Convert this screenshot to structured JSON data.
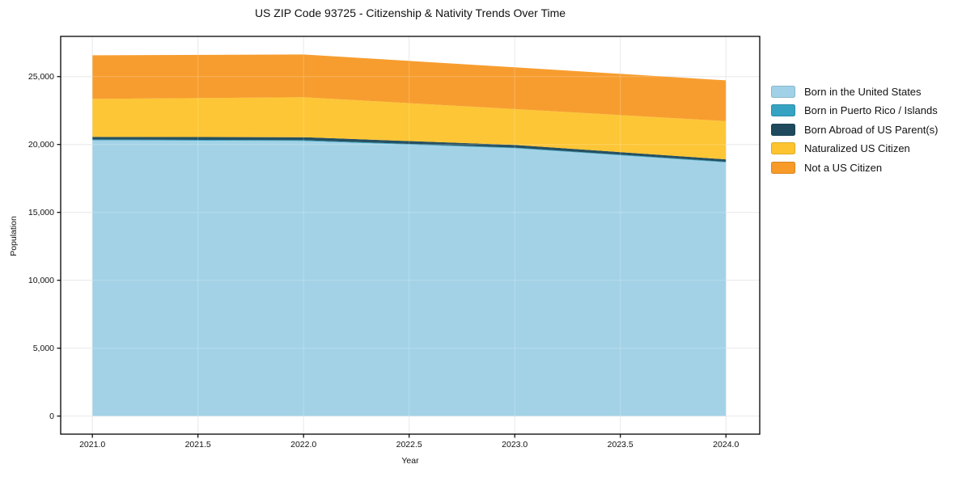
{
  "figure": {
    "background": "#ffffff"
  },
  "chart_data": {
    "type": "area",
    "stacked": true,
    "title": "US ZIP Code 93725 - Citizenship & Nativity Trends Over Time",
    "xlabel": "Year",
    "ylabel": "Population",
    "x": [
      2021,
      2022,
      2023,
      2024
    ],
    "series": [
      {
        "name": "Born in the United States",
        "color": "#a0d1e6",
        "values": [
          20310,
          20260,
          19720,
          18680
        ]
      },
      {
        "name": "Born in Puerto Rico / Islands",
        "color": "#35a3c1",
        "values": [
          55,
          60,
          50,
          45
        ]
      },
      {
        "name": "Born Abroad of US Parent(s)",
        "color": "#1f4a5d",
        "values": [
          195,
          215,
          200,
          180
        ]
      },
      {
        "name": "Naturalized US Citizen",
        "color": "#fdc42f",
        "values": [
          2800,
          2945,
          2640,
          2820
        ]
      },
      {
        "name": "Not a US Citizen",
        "color": "#f79a28",
        "values": [
          3210,
          3150,
          3070,
          3000
        ]
      }
    ],
    "totals": [
      26570,
      26630,
      25680,
      24725
    ],
    "xlim": [
      2020.85,
      2024.16
    ],
    "ylim": [
      -1331,
      27962
    ],
    "xticks": {
      "values": [
        2021.0,
        2021.5,
        2022.0,
        2022.5,
        2023.0,
        2023.5,
        2024.0
      ],
      "labels": [
        "2021.0",
        "2021.5",
        "2022.0",
        "2022.5",
        "2023.0",
        "2023.5",
        "2024.0"
      ]
    },
    "yticks": {
      "values": [
        0,
        5000,
        10000,
        15000,
        20000,
        25000
      ],
      "labels": [
        "0",
        "5,000",
        "10,000",
        "15,000",
        "20,000",
        "25,000"
      ]
    },
    "grid": true,
    "legend_position": "right-outside"
  },
  "colors": {
    "grid": "#e4e4e4",
    "grid_overlay": "rgba(255,255,255,0.22)",
    "spine": "#000000",
    "tick": "#000000",
    "text": "#111111"
  }
}
